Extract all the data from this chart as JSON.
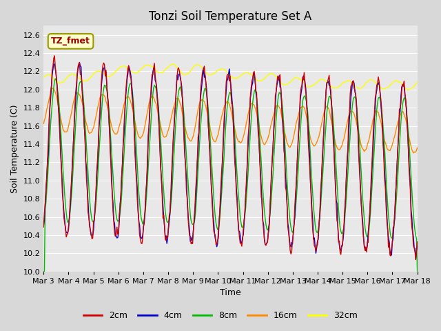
{
  "title": "Tonzi Soil Temperature Set A",
  "xlabel": "Time",
  "ylabel": "Soil Temperature (C)",
  "ylim": [
    10.0,
    12.7
  ],
  "yticks": [
    10.0,
    10.2,
    10.4,
    10.6,
    10.8,
    11.0,
    11.2,
    11.4,
    11.6,
    11.8,
    12.0,
    12.2,
    12.4,
    12.6
  ],
  "xtick_labels": [
    "Mar 3",
    "Mar 4",
    "Mar 5",
    "Mar 6",
    "Mar 7",
    "Mar 8",
    "Mar 9",
    "Mar 10",
    "Mar 11",
    "Mar 12",
    "Mar 13",
    "Mar 14",
    "Mar 15",
    "Mar 16",
    "Mar 17",
    "Mar 18"
  ],
  "colors": {
    "2cm": "#cc0000",
    "4cm": "#0000cc",
    "8cm": "#00bb00",
    "16cm": "#ff8800",
    "32cm": "#ffff00"
  },
  "legend_label": "TZ_fmet",
  "legend_box_facecolor": "#ffffcc",
  "legend_box_edgecolor": "#999900",
  "legend_text_color": "#990000",
  "fig_facecolor": "#d8d8d8",
  "plot_facecolor": "#e8e8e8",
  "grid_color": "#ffffff",
  "title_fontsize": 12,
  "axis_label_fontsize": 9,
  "tick_fontsize": 8,
  "legend_fontsize": 9,
  "line_width": 1.0,
  "n_points": 480,
  "time_days": 15
}
